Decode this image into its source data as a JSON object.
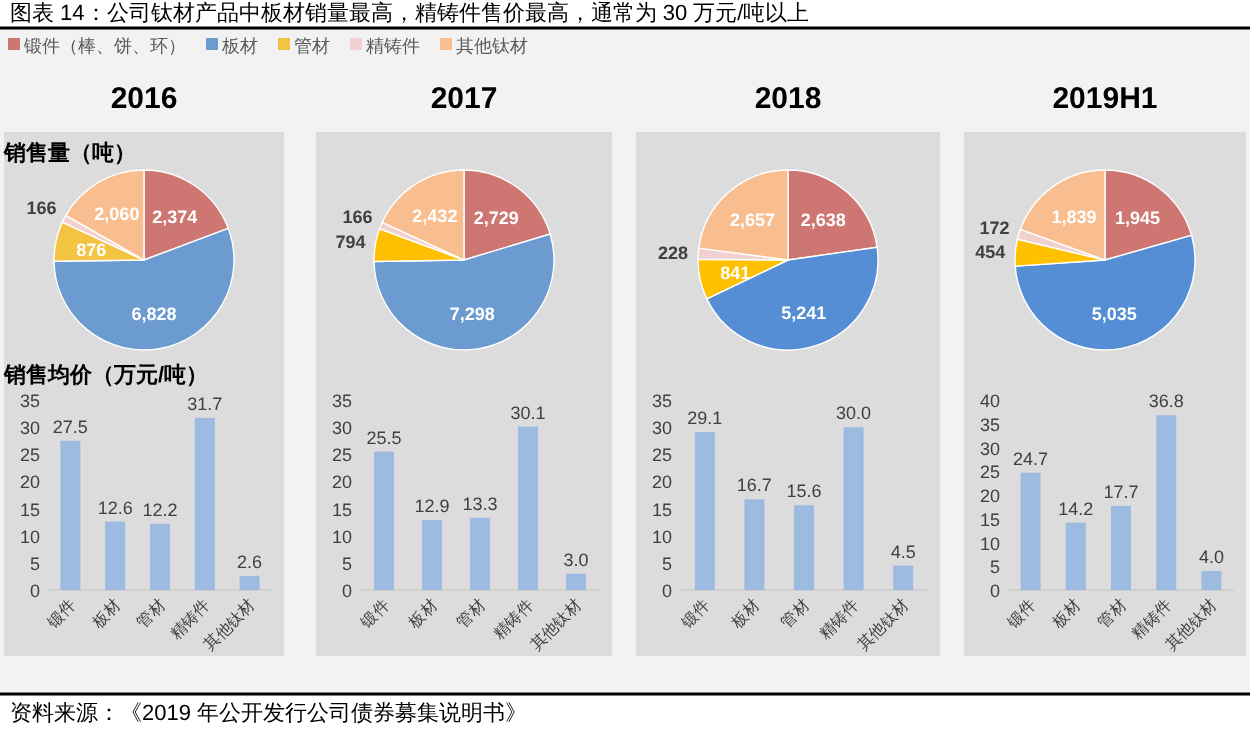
{
  "chart_data": [
    {
      "type": "pie",
      "title": "2016",
      "subtitle": "销售量（吨）",
      "legend": "top",
      "categories": [
        "锻件（棒、饼、环）",
        "板材",
        "管材",
        "精铸件",
        "其他钛材"
      ],
      "values": [
        2374,
        6828,
        876,
        166,
        2060
      ],
      "value_labels": [
        "2,374",
        "6,828",
        "876",
        "166",
        "2,060"
      ],
      "colors": [
        "#cd7672",
        "#6c9bd2",
        "#f5c342",
        "#f2d0cf",
        "#f9be8f"
      ],
      "annotations": [
        "图表 14：公司钛材产品中板材销量最高，精铸件售价最高，通常为 30 万元/吨以上",
        "资料来源：《2019 年公开发行公司债券募集说明书》"
      ]
    },
    {
      "type": "pie",
      "title": "2017",
      "categories": [
        null,
        null,
        null,
        null,
        null
      ],
      "values": [
        2729,
        7298,
        794,
        166,
        2432
      ],
      "value_labels": [
        "2,729",
        "7,298",
        "794",
        "166",
        "2,432"
      ],
      "colors": [
        "#cd7672",
        "#6c9bd2",
        "#ffc000",
        "#f2d0cf",
        "#f9be8f"
      ]
    },
    {
      "type": "pie",
      "title": "2018",
      "categories": [
        null,
        null,
        null,
        null,
        null
      ],
      "values": [
        2638,
        5241,
        841,
        228,
        2657
      ],
      "value_labels": [
        "2,638",
        "5,241",
        "841",
        "228",
        "2,657"
      ],
      "colors": [
        "#cd7672",
        "#558ed5",
        "#ffc000",
        "#f2d0cf",
        "#f9be8f"
      ]
    },
    {
      "type": "pie",
      "title": "2019H1",
      "categories": [
        null,
        null,
        null,
        null,
        null
      ],
      "values": [
        1945,
        5035,
        454,
        172,
        1839
      ],
      "value_labels": [
        "1,945",
        "5,035",
        "454",
        "172",
        "1,839"
      ],
      "colors": [
        "#cd7672",
        "#558ed5",
        "#ffc000",
        "#f2d0cf",
        "#f9be8f"
      ]
    },
    {
      "type": "bar",
      "title": "销售均价（万元/吨）",
      "categories": [
        "锻件",
        "板材",
        "管材",
        "精铸件",
        "其他钛材"
      ],
      "values": [
        27.5,
        12.6,
        12.2,
        31.7,
        2.6
      ],
      "value_labels": [
        "27.5",
        "12.6",
        "12.2",
        "31.7",
        "2.6"
      ],
      "color": "#9dbbe0",
      "ylim": [
        0,
        35
      ],
      "yticks": [
        0,
        5,
        10,
        15,
        20,
        25,
        30,
        35
      ]
    },
    {
      "type": "bar",
      "categories": [
        "锻件",
        "板材",
        "管材",
        "精铸件",
        "其他钛材"
      ],
      "values": [
        25.5,
        12.9,
        13.3,
        30.1,
        3.0
      ],
      "value_labels": [
        "25.5",
        "12.9",
        "13.3",
        "30.1",
        "3.0"
      ],
      "color": "#9dbbe0",
      "ylim": [
        0,
        35
      ],
      "yticks": [
        0,
        5,
        10,
        15,
        20,
        25,
        30,
        35
      ]
    },
    {
      "type": "bar",
      "categories": [
        "锻件",
        "板材",
        "管材",
        "精铸件",
        "其他钛材"
      ],
      "values": [
        29.1,
        16.7,
        15.6,
        30.0,
        4.5
      ],
      "value_labels": [
        "29.1",
        "16.7",
        "15.6",
        "30.0",
        "4.5"
      ],
      "color": "#9dbbe0",
      "ylim": [
        0,
        35
      ],
      "yticks": [
        0,
        5,
        10,
        15,
        20,
        25,
        30,
        35
      ]
    },
    {
      "type": "bar",
      "categories": [
        "锻件",
        "板材",
        "管材",
        "精铸件",
        "其他钛材"
      ],
      "values": [
        24.7,
        14.2,
        17.7,
        36.8,
        4.0
      ],
      "value_labels": [
        "24.7",
        "14.2",
        "17.7",
        "36.8",
        "4.0"
      ],
      "color": "#9dbbe0",
      "ylim": [
        0,
        40
      ],
      "yticks": [
        0,
        5,
        10,
        15,
        20,
        25,
        30,
        35,
        40
      ]
    }
  ]
}
